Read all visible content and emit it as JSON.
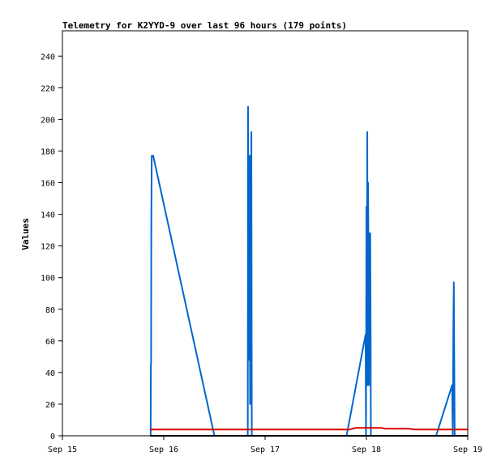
{
  "chart_data": {
    "type": "line",
    "title": "Telemetry for K2YYD-9 over last 96 hours (179 points)",
    "ylabel": "Values",
    "xlabel": "",
    "x_unit": "hours since Sep 15 00:00",
    "xlim": [
      0,
      96
    ],
    "ylim": [
      0,
      256
    ],
    "x_ticks": [
      {
        "x": 0,
        "label": "Sep 15"
      },
      {
        "x": 24,
        "label": "Sep 16"
      },
      {
        "x": 48,
        "label": "Sep 17"
      },
      {
        "x": 72,
        "label": "Sep 18"
      },
      {
        "x": 96,
        "label": "Sep 19"
      }
    ],
    "y_ticks": [
      0,
      20,
      40,
      60,
      80,
      100,
      120,
      140,
      160,
      180,
      200,
      220,
      240
    ],
    "grid": false,
    "legend": "none",
    "series": [
      {
        "color": "#0066cc",
        "points": [
          [
            20.9,
            0
          ],
          [
            20.95,
            45
          ],
          [
            21.0,
            45
          ],
          [
            21.05,
            133
          ],
          [
            21.15,
            177
          ],
          [
            21.5,
            177
          ],
          [
            36.0,
            0
          ],
          [
            43.9,
            0
          ],
          [
            43.97,
            208
          ],
          [
            44.05,
            145
          ],
          [
            44.15,
            93
          ],
          [
            44.25,
            48
          ],
          [
            44.35,
            177
          ],
          [
            44.45,
            20
          ],
          [
            44.55,
            177
          ],
          [
            44.65,
            93
          ],
          [
            44.75,
            192
          ],
          [
            44.85,
            0
          ],
          [
            67.3,
            0
          ],
          [
            71.8,
            64
          ],
          [
            71.9,
            0
          ],
          [
            72.0,
            145
          ],
          [
            72.1,
            48
          ],
          [
            72.2,
            192
          ],
          [
            72.3,
            32
          ],
          [
            72.4,
            160
          ],
          [
            72.5,
            96
          ],
          [
            72.6,
            32
          ],
          [
            72.7,
            128
          ],
          [
            72.8,
            48
          ],
          [
            72.9,
            128
          ],
          [
            73.0,
            64
          ],
          [
            73.05,
            0
          ],
          [
            88.5,
            0
          ],
          [
            92.3,
            32
          ],
          [
            92.45,
            0
          ],
          [
            92.6,
            72
          ],
          [
            92.7,
            97
          ],
          [
            92.8,
            48
          ],
          [
            92.9,
            0
          ]
        ]
      },
      {
        "color": "#dd0000",
        "points": [
          [
            20.8,
            4
          ],
          [
            68.0,
            4
          ],
          [
            69.5,
            5
          ],
          [
            75.5,
            5
          ],
          [
            76.5,
            4.5
          ],
          [
            82.0,
            4.5
          ],
          [
            83.5,
            4
          ],
          [
            96.0,
            4
          ]
        ]
      },
      {
        "color": "#000000",
        "points": [
          [
            20.8,
            0
          ],
          [
            96.0,
            0
          ]
        ]
      }
    ]
  }
}
